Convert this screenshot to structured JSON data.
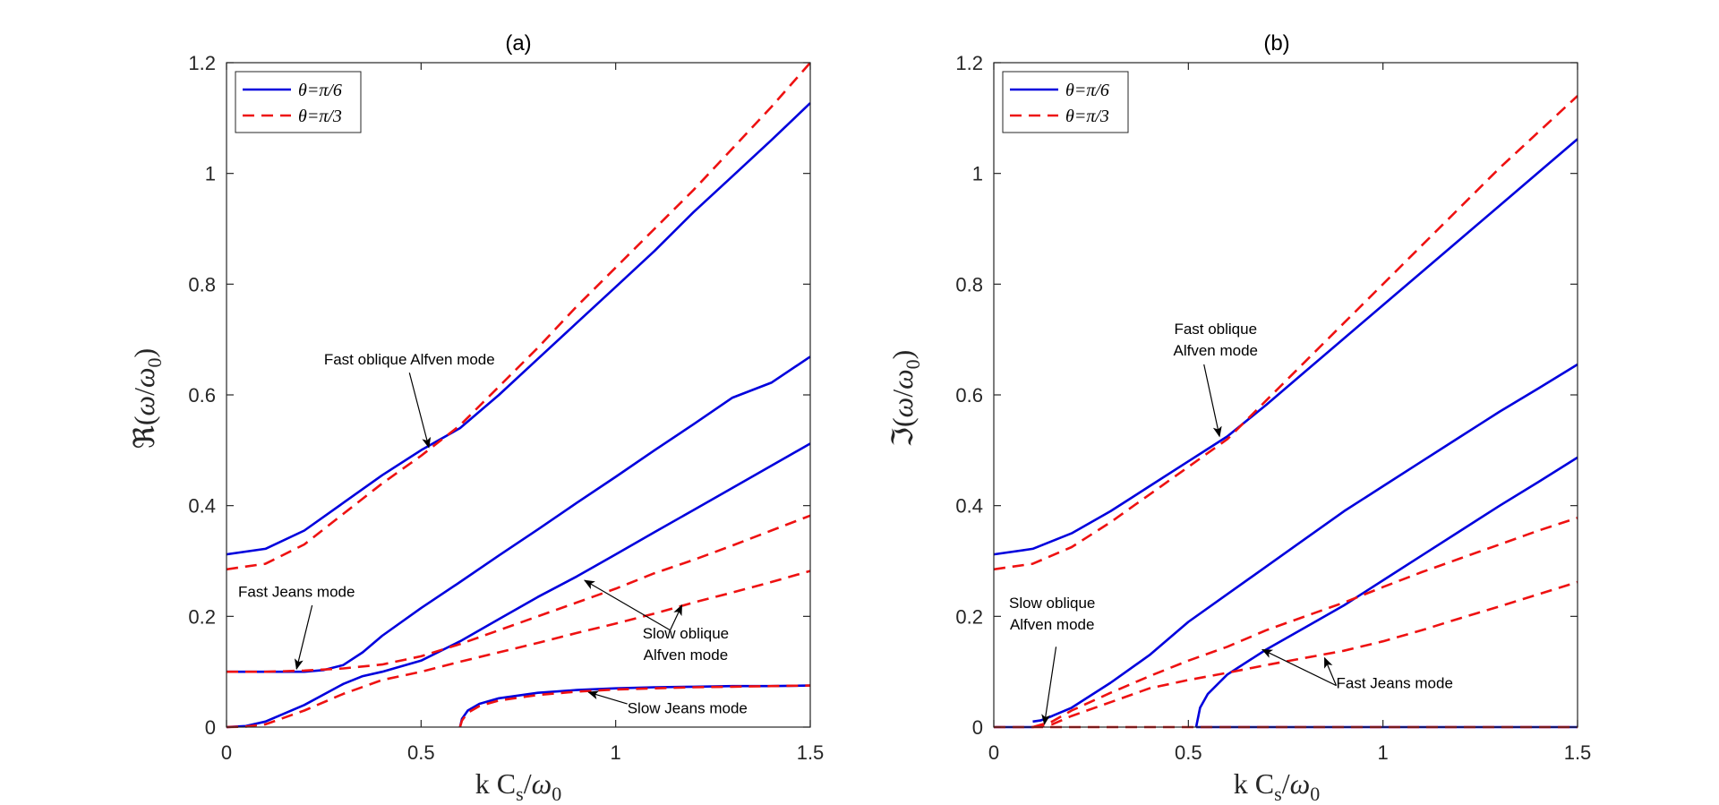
{
  "chart_data": [
    {
      "type": "line",
      "title": "(a)",
      "xlabel": "k C_s/ω_0",
      "ylabel": "ℜ(ω/ω_0)",
      "xlim": [
        0,
        1.5
      ],
      "ylim": [
        0,
        1.2
      ],
      "xticks": [
        0,
        0.5,
        1,
        1.5
      ],
      "xtick_labels": [
        "0",
        "0.5",
        "1",
        "1.5"
      ],
      "yticks": [
        0,
        0.2,
        0.4,
        0.6,
        0.8,
        1,
        1.2
      ],
      "ytick_labels": [
        "0",
        "0.2",
        "0.4",
        "0.6",
        "0.8",
        "1",
        "1.2"
      ],
      "grid": false,
      "legend": {
        "position": "top-left",
        "entries": [
          {
            "label": "θ=π/6",
            "color": "#0000dd",
            "style": "solid"
          },
          {
            "label": "θ=π/3",
            "color": "#ee1111",
            "style": "dashed"
          }
        ]
      },
      "series": [
        {
          "name": "θ=π/6 fast oblique Alfven",
          "legend": 0,
          "x": [
            0,
            0.1,
            0.2,
            0.3,
            0.4,
            0.5,
            0.6,
            0.7,
            0.8,
            0.9,
            1.0,
            1.1,
            1.2,
            1.3,
            1.4,
            1.5
          ],
          "y": [
            0.312,
            0.322,
            0.355,
            0.405,
            0.455,
            0.5,
            0.54,
            0.6,
            0.665,
            0.73,
            0.795,
            0.86,
            0.93,
            0.995,
            1.06,
            1.127
          ]
        },
        {
          "name": "θ=π/3 fast oblique Alfven",
          "legend": 1,
          "x": [
            0,
            0.1,
            0.2,
            0.3,
            0.4,
            0.5,
            0.6,
            0.7,
            0.8,
            0.9,
            1.0,
            1.1,
            1.2,
            1.3,
            1.4,
            1.5
          ],
          "y": [
            0.285,
            0.295,
            0.33,
            0.385,
            0.44,
            0.49,
            0.545,
            0.615,
            0.685,
            0.76,
            0.83,
            0.9,
            0.97,
            1.045,
            1.12,
            1.2
          ]
        },
        {
          "name": "θ=π/6 fast Jeans",
          "legend": 0,
          "x": [
            0,
            0.1,
            0.2,
            0.25,
            0.3,
            0.35,
            0.4,
            0.5,
            0.6,
            0.7,
            0.8,
            0.9,
            1.0,
            1.1,
            1.2,
            1.3,
            1.4,
            1.5
          ],
          "y": [
            0.1,
            0.1,
            0.1,
            0.103,
            0.112,
            0.135,
            0.165,
            0.215,
            0.262,
            0.31,
            0.357,
            0.405,
            0.452,
            0.5,
            0.547,
            0.595,
            0.622,
            0.669
          ]
        },
        {
          "name": "θ=π/6 slow oblique Alfven",
          "legend": 0,
          "x": [
            0,
            0.05,
            0.1,
            0.2,
            0.3,
            0.35,
            0.4,
            0.5,
            0.6,
            0.7,
            0.8,
            0.9,
            1.0,
            1.1,
            1.2,
            1.3,
            1.4,
            1.5
          ],
          "y": [
            0,
            0.002,
            0.01,
            0.04,
            0.078,
            0.092,
            0.1,
            0.12,
            0.155,
            0.195,
            0.235,
            0.272,
            0.312,
            0.352,
            0.392,
            0.432,
            0.472,
            0.512
          ]
        },
        {
          "name": "θ=π/3 upper",
          "legend": 1,
          "x": [
            0,
            0.1,
            0.2,
            0.3,
            0.4,
            0.5,
            0.6,
            0.7,
            0.8,
            0.9,
            1.0,
            1.1,
            1.2,
            1.3,
            1.4,
            1.5
          ],
          "y": [
            0.1,
            0.1,
            0.102,
            0.106,
            0.113,
            0.128,
            0.15,
            0.175,
            0.2,
            0.225,
            0.25,
            0.278,
            0.302,
            0.328,
            0.355,
            0.382
          ]
        },
        {
          "name": "θ=π/3 lower",
          "legend": 1,
          "x": [
            0,
            0.05,
            0.1,
            0.2,
            0.3,
            0.4,
            0.5,
            0.6,
            0.7,
            0.8,
            0.9,
            1.0,
            1.1,
            1.2,
            1.3,
            1.4,
            1.5
          ],
          "y": [
            0,
            0.001,
            0.005,
            0.03,
            0.06,
            0.085,
            0.1,
            0.118,
            0.135,
            0.152,
            0.17,
            0.187,
            0.205,
            0.225,
            0.243,
            0.262,
            0.282
          ]
        },
        {
          "name": "θ=π/6 slow Jeans",
          "legend": 0,
          "x": [
            0.6,
            0.605,
            0.62,
            0.65,
            0.7,
            0.8,
            0.9,
            1.0,
            1.1,
            1.2,
            1.3,
            1.4,
            1.5
          ],
          "y": [
            0,
            0.015,
            0.03,
            0.042,
            0.052,
            0.062,
            0.067,
            0.07,
            0.072,
            0.073,
            0.074,
            0.074,
            0.075
          ]
        },
        {
          "name": "θ=π/3 slow Jeans",
          "legend": 1,
          "x": [
            0.6,
            0.605,
            0.62,
            0.65,
            0.7,
            0.8,
            0.9,
            1.0,
            1.1,
            1.2,
            1.3,
            1.4,
            1.5
          ],
          "y": [
            0,
            0.012,
            0.026,
            0.038,
            0.048,
            0.058,
            0.064,
            0.068,
            0.07,
            0.072,
            0.073,
            0.074,
            0.075
          ]
        }
      ],
      "annotations": [
        {
          "lines": [
            "Fast oblique Alfven mode"
          ],
          "x": 0.47,
          "y": 0.655,
          "anchor": "middle",
          "arrow_from": [
            0.47,
            0.64
          ],
          "arrow_to": [
            0.52,
            0.505
          ]
        },
        {
          "lines": [
            "Fast Jeans mode"
          ],
          "x": 0.03,
          "y": 0.235,
          "anchor": "start",
          "arrow_from": [
            0.22,
            0.22
          ],
          "arrow_to": [
            0.18,
            0.105
          ]
        },
        {
          "lines": [
            "Slow oblique",
            "Alfven mode"
          ],
          "x": 1.18,
          "y": 0.16,
          "anchor": "middle",
          "arrow_from": [
            1.14,
            0.175
          ],
          "arrow_to": [
            0.92,
            0.265
          ],
          "arrow2_to": [
            1.17,
            0.22
          ]
        },
        {
          "lines": [
            "Slow Jeans mode"
          ],
          "x": 1.03,
          "y": 0.025,
          "anchor": "start",
          "arrow_from": [
            1.03,
            0.042
          ],
          "arrow_to": [
            0.93,
            0.063
          ]
        }
      ]
    },
    {
      "type": "line",
      "title": "(b)",
      "xlabel": "k C_s/ω_0",
      "ylabel": "ℑ(ω/ω_0)",
      "xlim": [
        0,
        1.5
      ],
      "ylim": [
        0,
        1.2
      ],
      "xticks": [
        0,
        0.5,
        1,
        1.5
      ],
      "xtick_labels": [
        "0",
        "0.5",
        "1",
        "1.5"
      ],
      "yticks": [
        0,
        0.2,
        0.4,
        0.6,
        0.8,
        1,
        1.2
      ],
      "ytick_labels": [
        "0",
        "0.2",
        "0.4",
        "0.6",
        "0.8",
        "1",
        "1.2"
      ],
      "grid": false,
      "legend": {
        "position": "top-left",
        "entries": [
          {
            "label": "θ=π/6",
            "color": "#0000dd",
            "style": "solid"
          },
          {
            "label": "θ=π/3",
            "color": "#ee1111",
            "style": "dashed"
          }
        ]
      },
      "series": [
        {
          "name": "θ=π/6 fast oblique Alfven",
          "legend": 0,
          "x": [
            0,
            0.1,
            0.2,
            0.3,
            0.4,
            0.5,
            0.6,
            0.7,
            0.8,
            0.9,
            1.0,
            1.1,
            1.2,
            1.3,
            1.4,
            1.5
          ],
          "y": [
            0.312,
            0.322,
            0.35,
            0.39,
            0.435,
            0.48,
            0.525,
            0.582,
            0.642,
            0.702,
            0.762,
            0.822,
            0.882,
            0.942,
            1.002,
            1.062
          ]
        },
        {
          "name": "θ=π/3 fast oblique Alfven",
          "legend": 1,
          "x": [
            0,
            0.1,
            0.2,
            0.3,
            0.4,
            0.5,
            0.6,
            0.7,
            0.8,
            0.9,
            1.0,
            1.1,
            1.2,
            1.3,
            1.4,
            1.5
          ],
          "y": [
            0.285,
            0.295,
            0.325,
            0.37,
            0.42,
            0.47,
            0.52,
            0.59,
            0.66,
            0.73,
            0.8,
            0.87,
            0.94,
            1.01,
            1.075,
            1.14
          ]
        },
        {
          "name": "θ=π/6 upper",
          "legend": 0,
          "x": [
            0.1,
            0.12,
            0.15,
            0.2,
            0.3,
            0.4,
            0.5,
            0.6,
            0.7,
            0.8,
            0.9,
            1.0,
            1.1,
            1.2,
            1.3,
            1.4,
            1.5
          ],
          "y": [
            0.01,
            0.012,
            0.02,
            0.035,
            0.08,
            0.13,
            0.19,
            0.24,
            0.29,
            0.34,
            0.39,
            0.435,
            0.48,
            0.525,
            0.57,
            0.612,
            0.655
          ]
        },
        {
          "name": "θ=π/6 lower",
          "legend": 0,
          "x": [
            0.52,
            0.53,
            0.55,
            0.6,
            0.7,
            0.8,
            0.9,
            1.0,
            1.1,
            1.2,
            1.3,
            1.4,
            1.5
          ],
          "y": [
            0,
            0.035,
            0.06,
            0.095,
            0.14,
            0.18,
            0.22,
            0.265,
            0.31,
            0.355,
            0.4,
            0.443,
            0.487
          ]
        },
        {
          "name": "θ=π/6 slow Jeans (zero)",
          "legend": 0,
          "x": [
            0.52,
            1.5
          ],
          "y": [
            0,
            0
          ]
        },
        {
          "name": "θ=π/3 upper",
          "legend": 1,
          "x": [
            0.1,
            0.15,
            0.2,
            0.3,
            0.4,
            0.5,
            0.6,
            0.7,
            0.8,
            0.9,
            1.0,
            1.1,
            1.2,
            1.3,
            1.4,
            1.5
          ],
          "y": [
            0,
            0.01,
            0.03,
            0.062,
            0.092,
            0.12,
            0.145,
            0.175,
            0.2,
            0.225,
            0.253,
            0.28,
            0.305,
            0.33,
            0.355,
            0.378
          ]
        },
        {
          "name": "θ=π/3 lower",
          "legend": 1,
          "x": [
            0.1,
            0.15,
            0.2,
            0.3,
            0.4,
            0.5,
            0.6,
            0.7,
            0.8,
            0.9,
            1.0,
            1.1,
            1.2,
            1.3,
            1.4,
            1.5
          ],
          "y": [
            0,
            0.005,
            0.02,
            0.045,
            0.07,
            0.085,
            0.098,
            0.112,
            0.125,
            0.138,
            0.155,
            0.175,
            0.197,
            0.218,
            0.24,
            0.262
          ]
        },
        {
          "name": "θ=π/6 zero branch",
          "legend": 0,
          "x": [
            0,
            0.1
          ],
          "y": [
            0,
            0
          ]
        },
        {
          "name": "θ=π/3 zero branch",
          "legend": 1,
          "x": [
            0,
            1.5
          ],
          "y": [
            0,
            0
          ]
        }
      ],
      "annotations": [
        {
          "lines": [
            "Fast  oblique",
            "Alfven mode"
          ],
          "x": 0.57,
          "y": 0.71,
          "anchor": "middle",
          "arrow_from": [
            0.54,
            0.655
          ],
          "arrow_to": [
            0.58,
            0.525
          ]
        },
        {
          "lines": [
            "Slow oblique",
            "Alfven  mode"
          ],
          "x": 0.15,
          "y": 0.215,
          "anchor": "middle",
          "arrow_from": [
            0.16,
            0.145
          ],
          "arrow_to": [
            0.13,
            0.005
          ]
        },
        {
          "lines": [
            "Fast Jeans mode"
          ],
          "x": 0.88,
          "y": 0.07,
          "anchor": "start",
          "arrow_from": [
            0.88,
            0.075
          ],
          "arrow_to": [
            0.69,
            0.14
          ],
          "arrow2_to": [
            0.85,
            0.125
          ]
        }
      ]
    }
  ]
}
